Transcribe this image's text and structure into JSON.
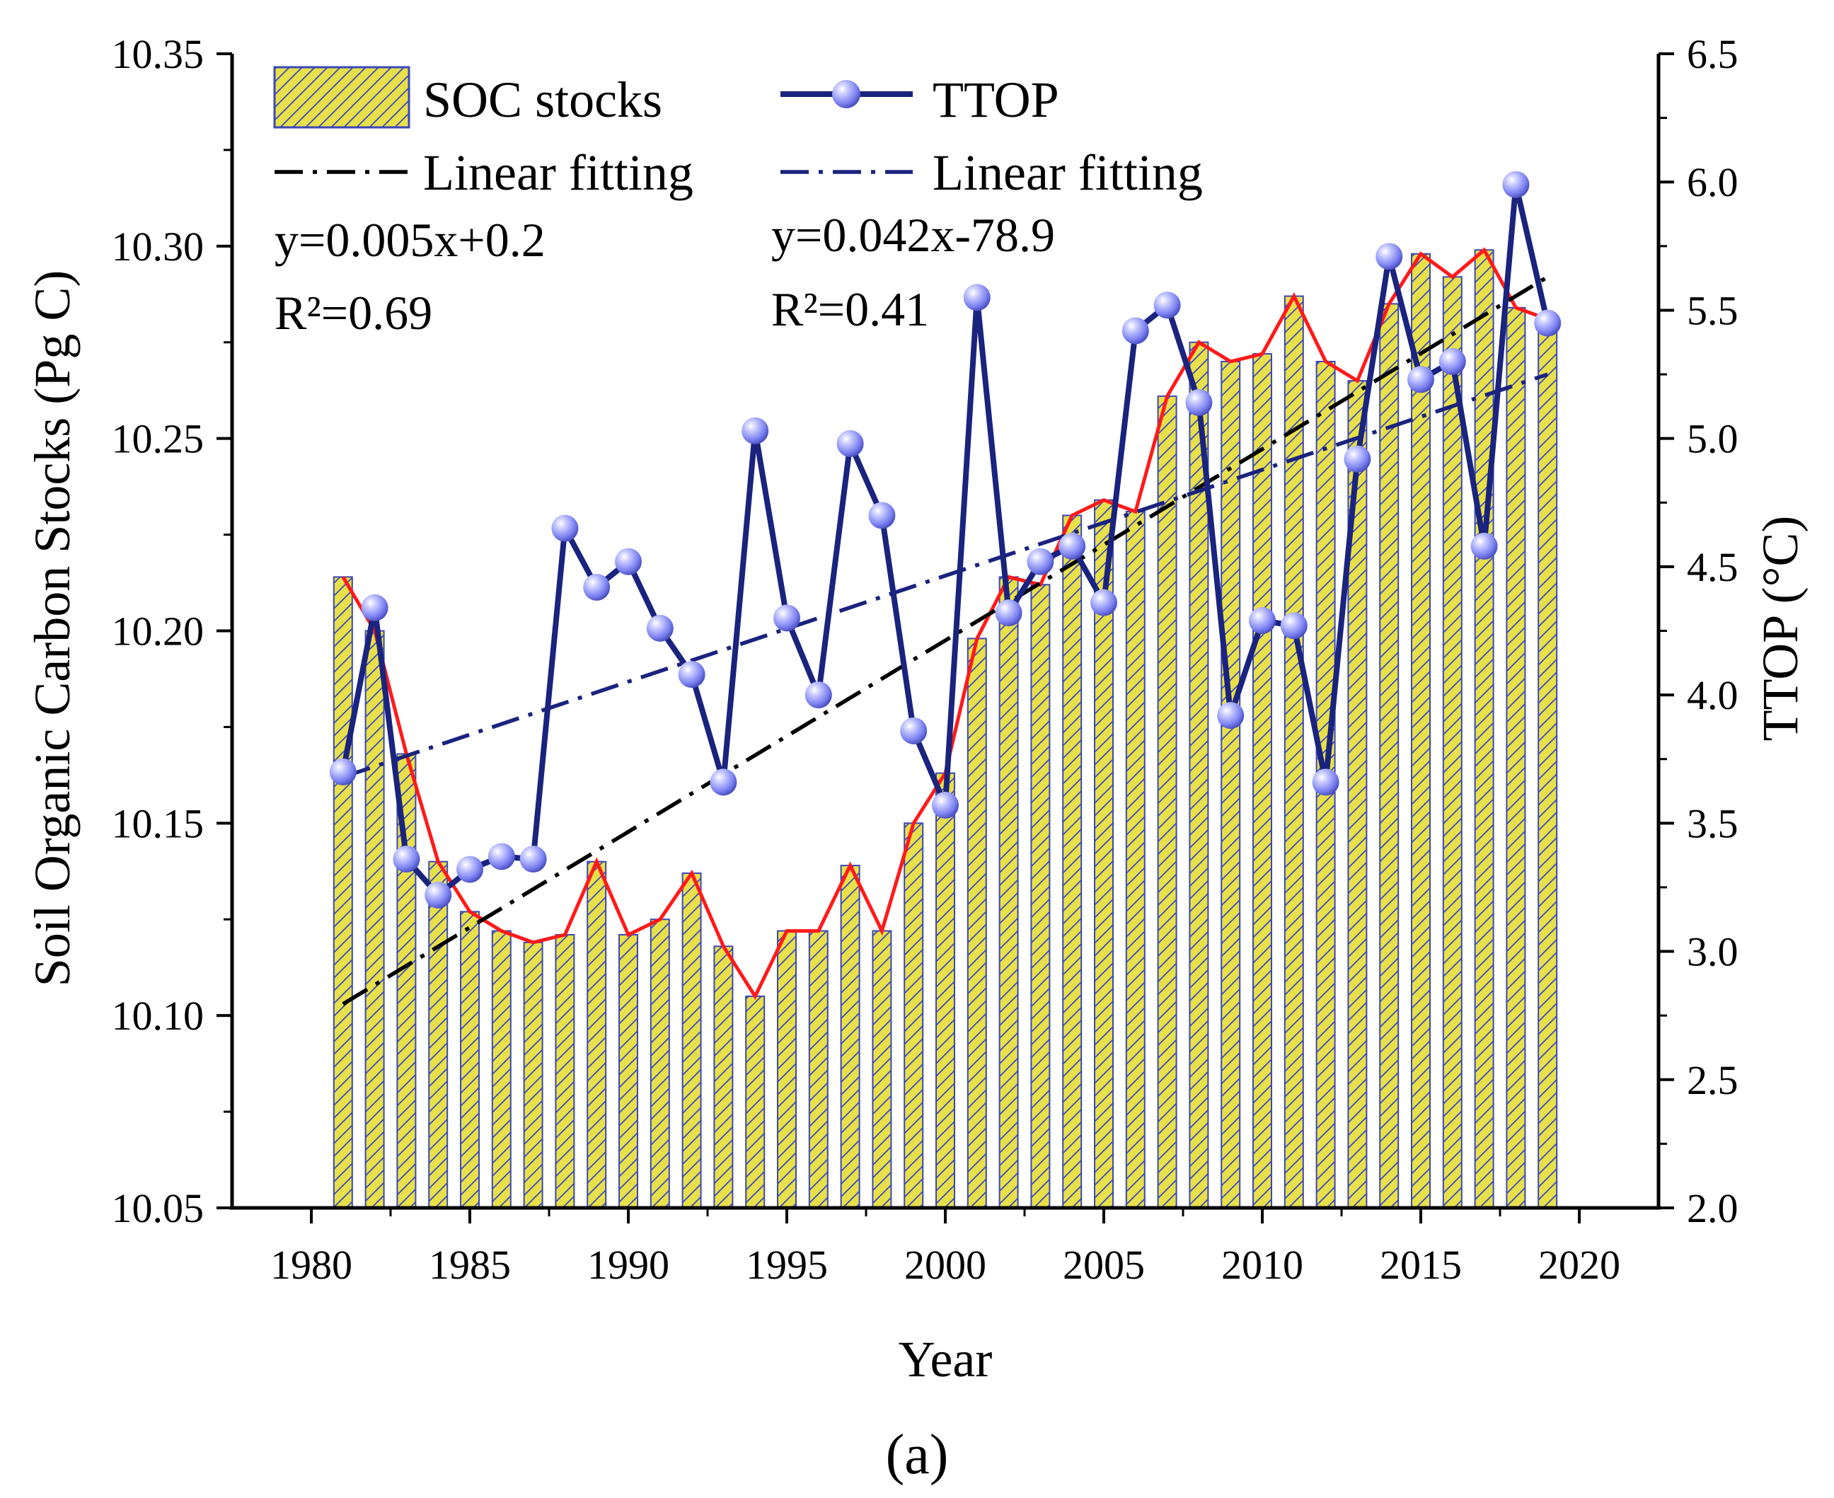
{
  "chart_data": {
    "type": "bar",
    "caption": "(a)",
    "xlabel": "Year",
    "ylabel": "Soil Organic Carbon Stocks (Pg C)",
    "y2label": "TTOP (°C)",
    "xlim": [
      1977.5,
      2022.5
    ],
    "ylim": [
      10.05,
      10.35
    ],
    "y2lim": [
      2.0,
      6.5
    ],
    "x_ticks": [
      1980,
      1985,
      1990,
      1995,
      2000,
      2005,
      2010,
      2015,
      2020
    ],
    "y_ticks": [
      "10.05",
      "10.10",
      "10.15",
      "10.20",
      "10.25",
      "10.30",
      "10.35"
    ],
    "y2_ticks": [
      "2.0",
      "2.5",
      "3.0",
      "3.5",
      "4.0",
      "4.5",
      "5.0",
      "5.5",
      "6.0",
      "6.5"
    ],
    "x": [
      1981,
      1982,
      1983,
      1984,
      1985,
      1986,
      1987,
      1988,
      1989,
      1990,
      1991,
      1992,
      1993,
      1994,
      1995,
      1996,
      1997,
      1998,
      1999,
      2000,
      2001,
      2002,
      2003,
      2004,
      2005,
      2006,
      2007,
      2008,
      2009,
      2010,
      2011,
      2012,
      2013,
      2014,
      2015,
      2016,
      2017,
      2018,
      2019
    ],
    "series": [
      {
        "name": "SOC stocks",
        "type": "bar",
        "axis": "left",
        "color": "#e8e04a",
        "edge_color": "#3a48b8",
        "outline_color": "#ff1a1a",
        "values": [
          10.214,
          10.2,
          10.168,
          10.14,
          10.127,
          10.122,
          10.119,
          10.121,
          10.14,
          10.121,
          10.125,
          10.137,
          10.118,
          10.105,
          10.122,
          10.122,
          10.139,
          10.122,
          10.15,
          10.163,
          10.198,
          10.214,
          10.212,
          10.23,
          10.234,
          10.231,
          10.261,
          10.275,
          10.27,
          10.272,
          10.287,
          10.27,
          10.265,
          10.285,
          10.298,
          10.292,
          10.299,
          10.284,
          10.281
        ]
      },
      {
        "name": "TTOP",
        "type": "line",
        "axis": "right",
        "color": "#1a237e",
        "marker_color": "#8a90ff",
        "values": [
          3.7,
          4.34,
          3.36,
          3.22,
          3.32,
          3.37,
          3.36,
          4.65,
          4.42,
          4.52,
          4.26,
          4.08,
          3.66,
          5.03,
          4.3,
          4.0,
          4.98,
          4.7,
          3.86,
          3.57,
          5.55,
          4.32,
          4.52,
          4.58,
          4.36,
          5.42,
          5.52,
          5.14,
          3.92,
          4.29,
          4.27,
          3.66,
          4.92,
          5.71,
          5.23,
          5.3,
          4.58,
          5.99,
          5.45
        ]
      }
    ],
    "fits": [
      {
        "name": "Linear fitting",
        "axis": "left",
        "applies_to": "SOC stocks",
        "color": "#000000",
        "slope": 0.005,
        "intercept": 0.2,
        "equation": "y=0.005x+0.2",
        "r2": "R²=0.69",
        "start": [
          1981,
          10.103
        ],
        "end": [
          2019,
          10.292
        ]
      },
      {
        "name": "Linear fitting",
        "axis": "right",
        "applies_to": "TTOP",
        "color": "#1a237e",
        "slope": 0.042,
        "intercept": -78.9,
        "equation": "y=0.042x-78.9",
        "r2": "R²=0.41",
        "start": [
          1981,
          3.68
        ],
        "end": [
          2019,
          5.25
        ]
      }
    ],
    "legend": {
      "position": "top-left",
      "entries": [
        "SOC stocks",
        "TTOP",
        "Linear fitting",
        "Linear fitting"
      ]
    }
  }
}
